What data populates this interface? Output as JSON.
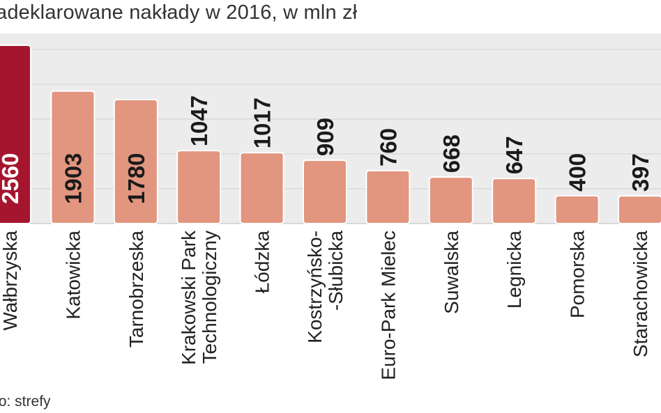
{
  "title": "adeklarowane nakłady w 2016, w mln zł",
  "source": "to: strefy",
  "colors": {
    "plot_bg": "#ececec",
    "gridline": "#d0d0d0",
    "highlight_bar": "#a5162e",
    "bar": "#e2957f",
    "value_dark": "#1a1a1a",
    "value_light": "#ffffff"
  },
  "chart_data": {
    "type": "bar",
    "orientation": "vertical",
    "categories": [
      "Wałbrzyska",
      "Katowicka",
      "Tarnobrzeska",
      "Krakowski Park Technologiczny",
      "Łódzka",
      "Kostrzyńsko-Słubicka",
      "Euro-Park Mielec",
      "Suwalska",
      "Legnicka",
      "Pomorska",
      "Starachowicka"
    ],
    "category_lines": [
      [
        "Wałbrzyska"
      ],
      [
        "Katowicka"
      ],
      [
        "Tarnobrzeska"
      ],
      [
        "Krakowski Park",
        "Technologiczny"
      ],
      [
        "Łódzka"
      ],
      [
        "Kostrzyńsko-",
        "-Słubicka"
      ],
      [
        "Euro-Park Mielec"
      ],
      [
        "Suwalska"
      ],
      [
        "Legnicka"
      ],
      [
        "Pomorska"
      ],
      [
        "Starachowicka"
      ]
    ],
    "values": [
      2560,
      1903,
      1780,
      1047,
      1017,
      909,
      760,
      668,
      647,
      400,
      397
    ],
    "value_labels": [
      "2560",
      "1903",
      "1780",
      "1047",
      "1017",
      "909",
      "760",
      "668",
      "647",
      "400",
      "397"
    ],
    "highlight_index": 0,
    "ylim": [
      0,
      3000
    ],
    "grid": true,
    "xlabel": "",
    "ylabel": ""
  }
}
